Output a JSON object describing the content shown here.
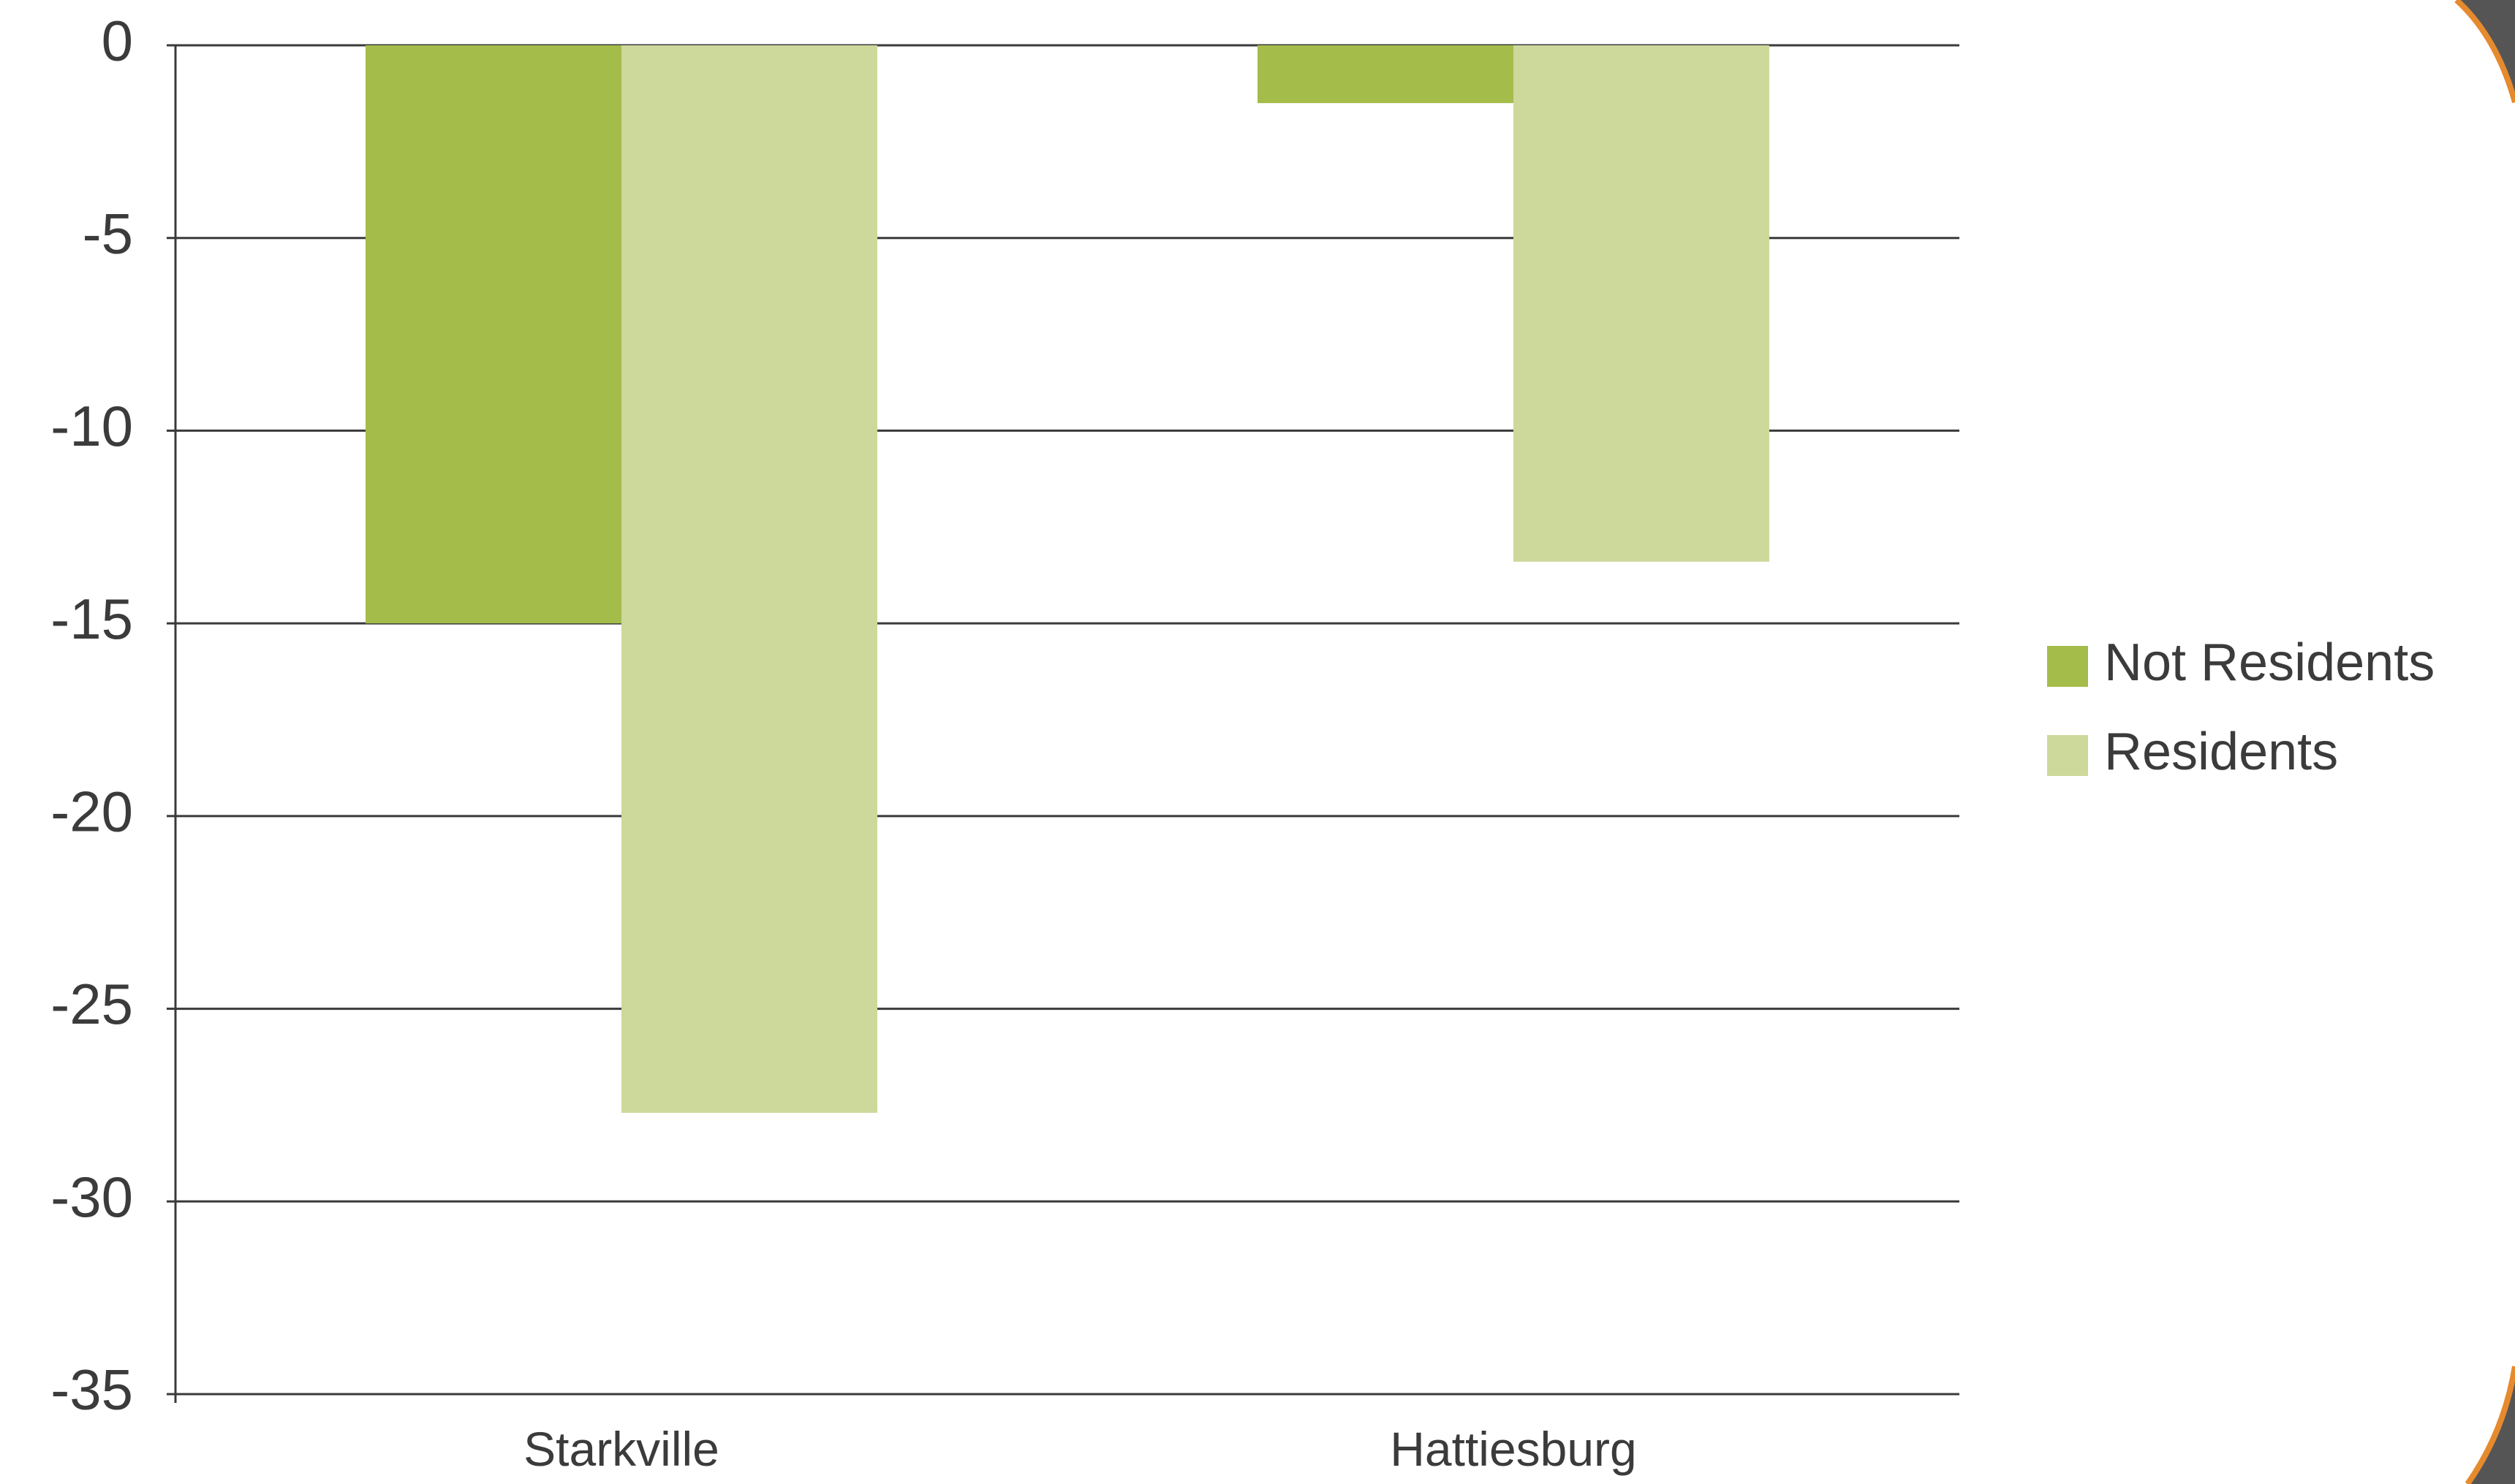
{
  "chart_data": {
    "type": "bar",
    "title": "",
    "xlabel": "",
    "ylabel": "",
    "categories": [
      "Starkville",
      "Hattiesburg"
    ],
    "series": [
      {
        "name": "Not Residents",
        "color": "#a4bc4a",
        "values": [
          -15.0,
          -1.5
        ]
      },
      {
        "name": "Residents",
        "color": "#cdd89b",
        "values": [
          -27.7,
          -13.4
        ]
      }
    ],
    "ylim": [
      -35,
      0
    ],
    "yticks": [
      0,
      -5,
      -10,
      -15,
      -20,
      -25,
      -30,
      -35
    ],
    "grid": true,
    "legend_position": "right"
  },
  "decoration": {
    "accent_color": "#e68a2e",
    "frame_color": "#555555"
  }
}
